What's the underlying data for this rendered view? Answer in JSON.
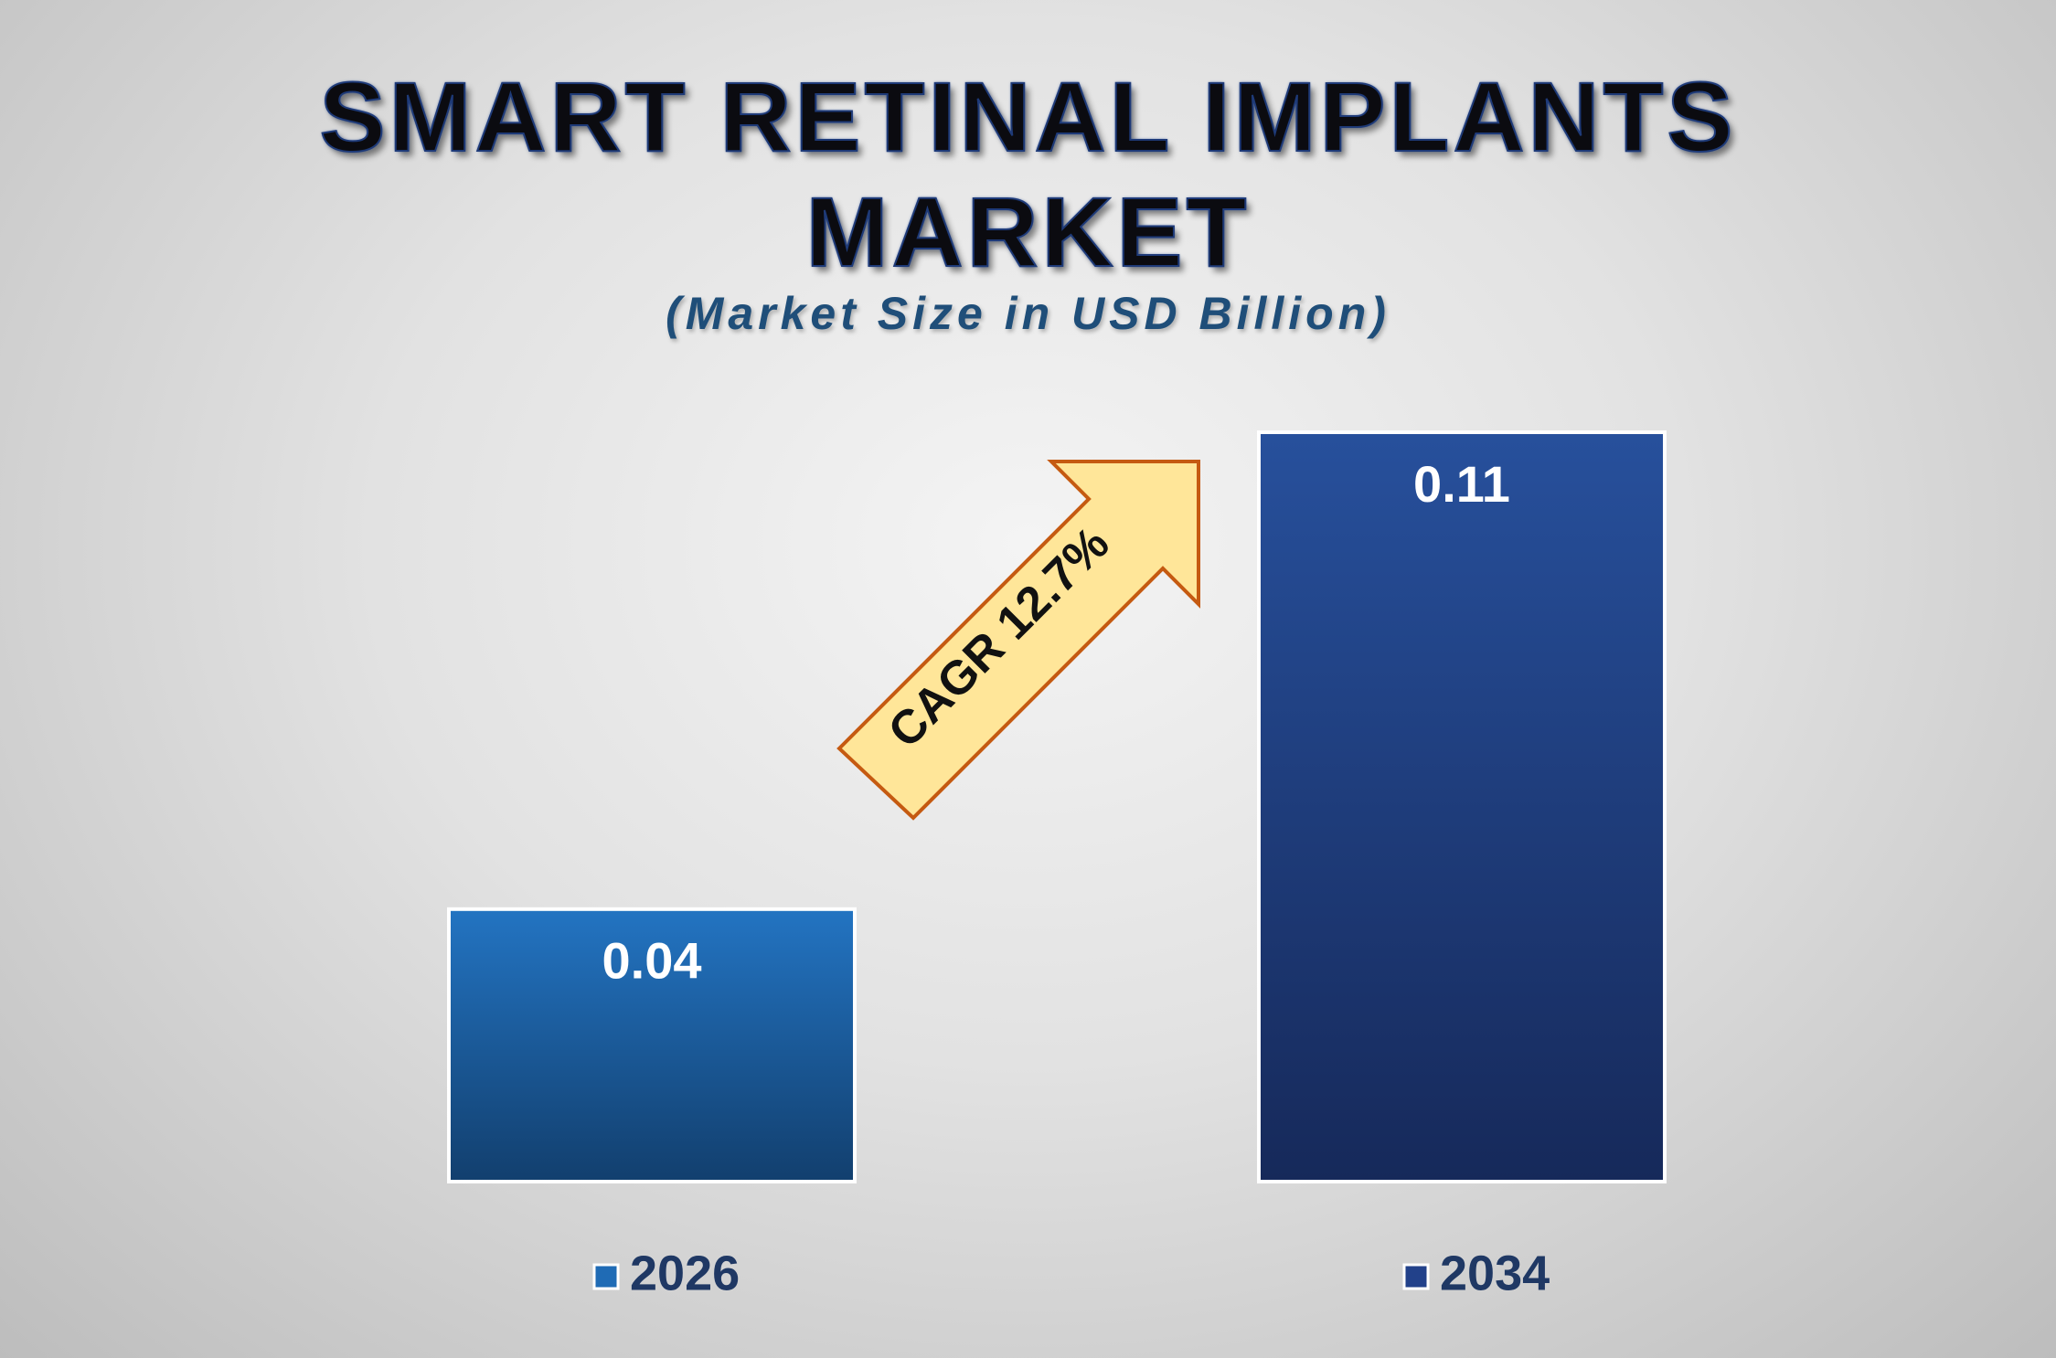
{
  "header": {
    "title_line1": "SMART RETINAL IMPLANTS",
    "title_line2": "MARKET",
    "subtitle": "(Market Size in USD Billion)"
  },
  "annotation": {
    "text": "CAGR 12.7%",
    "fill_color": "#ffe699",
    "stroke_color": "#c55a11"
  },
  "chart_data": {
    "type": "bar",
    "title": "SMART RETINAL IMPLANTS MARKET",
    "subtitle": "(Market Size in USD Billion)",
    "categories": [
      "2026",
      "2034"
    ],
    "series": [
      {
        "name": "2026",
        "values": [
          0.04,
          null
        ],
        "color": "#1f6bb5"
      },
      {
        "name": "2034",
        "values": [
          null,
          0.11
        ],
        "color": "#22418a"
      }
    ],
    "value_labels": [
      "0.04",
      "0.11"
    ],
    "ylim": [
      0,
      0.11
    ],
    "grid": false,
    "legend_position": "bottom",
    "annotations": [
      "CAGR 12.7%"
    ]
  }
}
